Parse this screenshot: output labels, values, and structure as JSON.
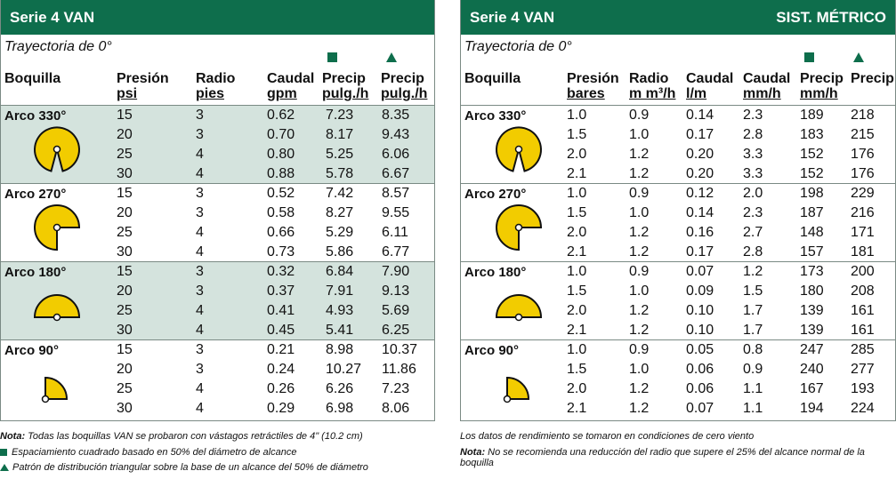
{
  "left": {
    "title": "Serie 4 VAN",
    "trajectory": "Trayectoria de 0°",
    "headers": {
      "boquilla": "Boquilla",
      "presion": [
        "Presión",
        "psi"
      ],
      "radio": [
        "Radio",
        "pies"
      ],
      "caudal": [
        "Caudal",
        "gpm"
      ],
      "precip_sq": [
        "Precip",
        "pulg./h"
      ],
      "precip_tri": [
        "Precip",
        "pulg./h"
      ]
    },
    "groups": [
      {
        "label": "Arco 330°",
        "icon": "arc-330-icon",
        "rows": [
          [
            "15",
            "3",
            "0.62",
            "7.23",
            "8.35"
          ],
          [
            "20",
            "3",
            "0.70",
            "8.17",
            "9.43"
          ],
          [
            "25",
            "4",
            "0.80",
            "5.25",
            "6.06"
          ],
          [
            "30",
            "4",
            "0.88",
            "5.78",
            "6.67"
          ]
        ]
      },
      {
        "label": "Arco 270°",
        "icon": "arc-270-icon",
        "rows": [
          [
            "15",
            "3",
            "0.52",
            "7.42",
            "8.57"
          ],
          [
            "20",
            "3",
            "0.58",
            "8.27",
            "9.55"
          ],
          [
            "25",
            "4",
            "0.66",
            "5.29",
            "6.11"
          ],
          [
            "30",
            "4",
            "0.73",
            "5.86",
            "6.77"
          ]
        ]
      },
      {
        "label": "Arco 180°",
        "icon": "arc-180-icon",
        "rows": [
          [
            "15",
            "3",
            "0.32",
            "6.84",
            "7.90"
          ],
          [
            "20",
            "3",
            "0.37",
            "7.91",
            "9.13"
          ],
          [
            "25",
            "4",
            "0.41",
            "4.93",
            "5.69"
          ],
          [
            "30",
            "4",
            "0.45",
            "5.41",
            "6.25"
          ]
        ]
      },
      {
        "label": "Arco 90°",
        "icon": "arc-90-icon",
        "rows": [
          [
            "15",
            "3",
            "0.21",
            "8.98",
            "10.37"
          ],
          [
            "20",
            "3",
            "0.24",
            "10.27",
            "11.86"
          ],
          [
            "25",
            "4",
            "0.26",
            "6.26",
            "7.23"
          ],
          [
            "30",
            "4",
            "0.29",
            "6.98",
            "8.06"
          ]
        ]
      }
    ],
    "notes": {
      "nota_label": "Nota:",
      "nota_text": " Todas las boquillas VAN se probaron con vástagos retráctiles de 4\" (10.2 cm)",
      "square_note": "Espaciamiento cuadrado basado en 50% del diámetro de alcance",
      "triangle_note": "Patrón de distribución triangular sobre la base de un alcance del 50% de diámetro"
    }
  },
  "right": {
    "title": "Serie 4 VAN",
    "title_right": "SIST. MÉTRICO",
    "trajectory": "Trayectoria de 0°",
    "headers": {
      "boquilla": "Boquilla",
      "presion": [
        "Presión",
        "bares"
      ],
      "radio": [
        "Radio",
        "m m³/h"
      ],
      "caudal_lm": [
        "Caudal",
        "l/m"
      ],
      "caudal_mmh": [
        "Caudal",
        "mm/h"
      ],
      "precip_sq": [
        "Precip",
        "mm/h"
      ],
      "precip_tri": "Precip"
    },
    "groups": [
      {
        "label": "Arco 330°",
        "icon": "arc-330-icon",
        "rows": [
          [
            "1.0",
            "0.9",
            "0.14",
            "2.3",
            "189",
            "218"
          ],
          [
            "1.5",
            "1.0",
            "0.17",
            "2.8",
            "183",
            "215"
          ],
          [
            "2.0",
            "1.2",
            "0.20",
            "3.3",
            "152",
            "176"
          ],
          [
            "2.1",
            "1.2",
            "0.20",
            "3.3",
            "152",
            "176"
          ]
        ]
      },
      {
        "label": "Arco 270°",
        "icon": "arc-270-icon",
        "rows": [
          [
            "1.0",
            "0.9",
            "0.12",
            "2.0",
            "198",
            "229"
          ],
          [
            "1.5",
            "1.0",
            "0.14",
            "2.3",
            "187",
            "216"
          ],
          [
            "2.0",
            "1.2",
            "0.16",
            "2.7",
            "148",
            "171"
          ],
          [
            "2.1",
            "1.2",
            "0.17",
            "2.8",
            "157",
            "181"
          ]
        ]
      },
      {
        "label": "Arco 180°",
        "icon": "arc-180-icon",
        "rows": [
          [
            "1.0",
            "0.9",
            "0.07",
            "1.2",
            "173",
            "200"
          ],
          [
            "1.5",
            "1.0",
            "0.09",
            "1.5",
            "180",
            "208"
          ],
          [
            "2.0",
            "1.2",
            "0.10",
            "1.7",
            "139",
            "161"
          ],
          [
            "2.1",
            "1.2",
            "0.10",
            "1.7",
            "139",
            "161"
          ]
        ]
      },
      {
        "label": "Arco 90°",
        "icon": "arc-90-icon",
        "rows": [
          [
            "1.0",
            "0.9",
            "0.05",
            "0.8",
            "247",
            "285"
          ],
          [
            "1.5",
            "1.0",
            "0.06",
            "0.9",
            "240",
            "277"
          ],
          [
            "2.0",
            "1.2",
            "0.06",
            "1.1",
            "167",
            "193"
          ],
          [
            "2.1",
            "1.2",
            "0.07",
            "1.1",
            "194",
            "224"
          ]
        ]
      }
    ],
    "notes": {
      "wind_note": "Los datos de rendimiento se tomaron en condiciones de cero viento",
      "nota_label": "Nota:",
      "nota_text": " No se recomienda una reducción del radio que supere el 25% del alcance normal de la boquilla"
    }
  },
  "colors": {
    "header_green": "#0e6e4c",
    "shade": "#d4e3dd",
    "icon_yellow": "#f2cc00"
  }
}
